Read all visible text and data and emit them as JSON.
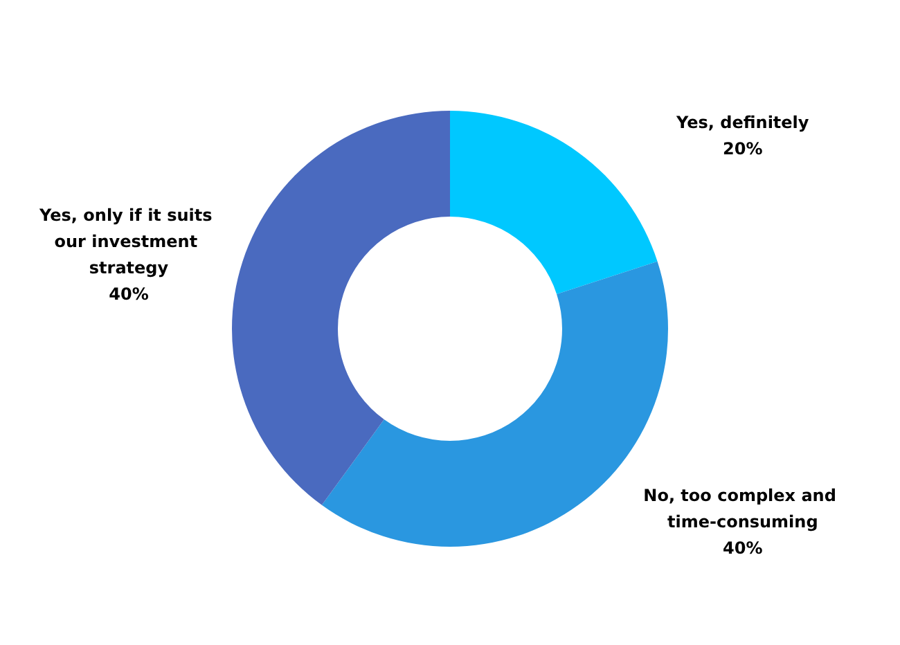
{
  "chart_data": {
    "type": "donut",
    "categories": [
      "Yes, definitely",
      "No, too complex and time-consuming",
      "Yes, only if it suits our investment strategy"
    ],
    "values": [
      20,
      40,
      40
    ],
    "colors": [
      "#00c8ff",
      "#2a97e0",
      "#4a6abf"
    ],
    "value_labels": [
      "20%",
      "40%",
      "40%"
    ],
    "legend": false
  }
}
